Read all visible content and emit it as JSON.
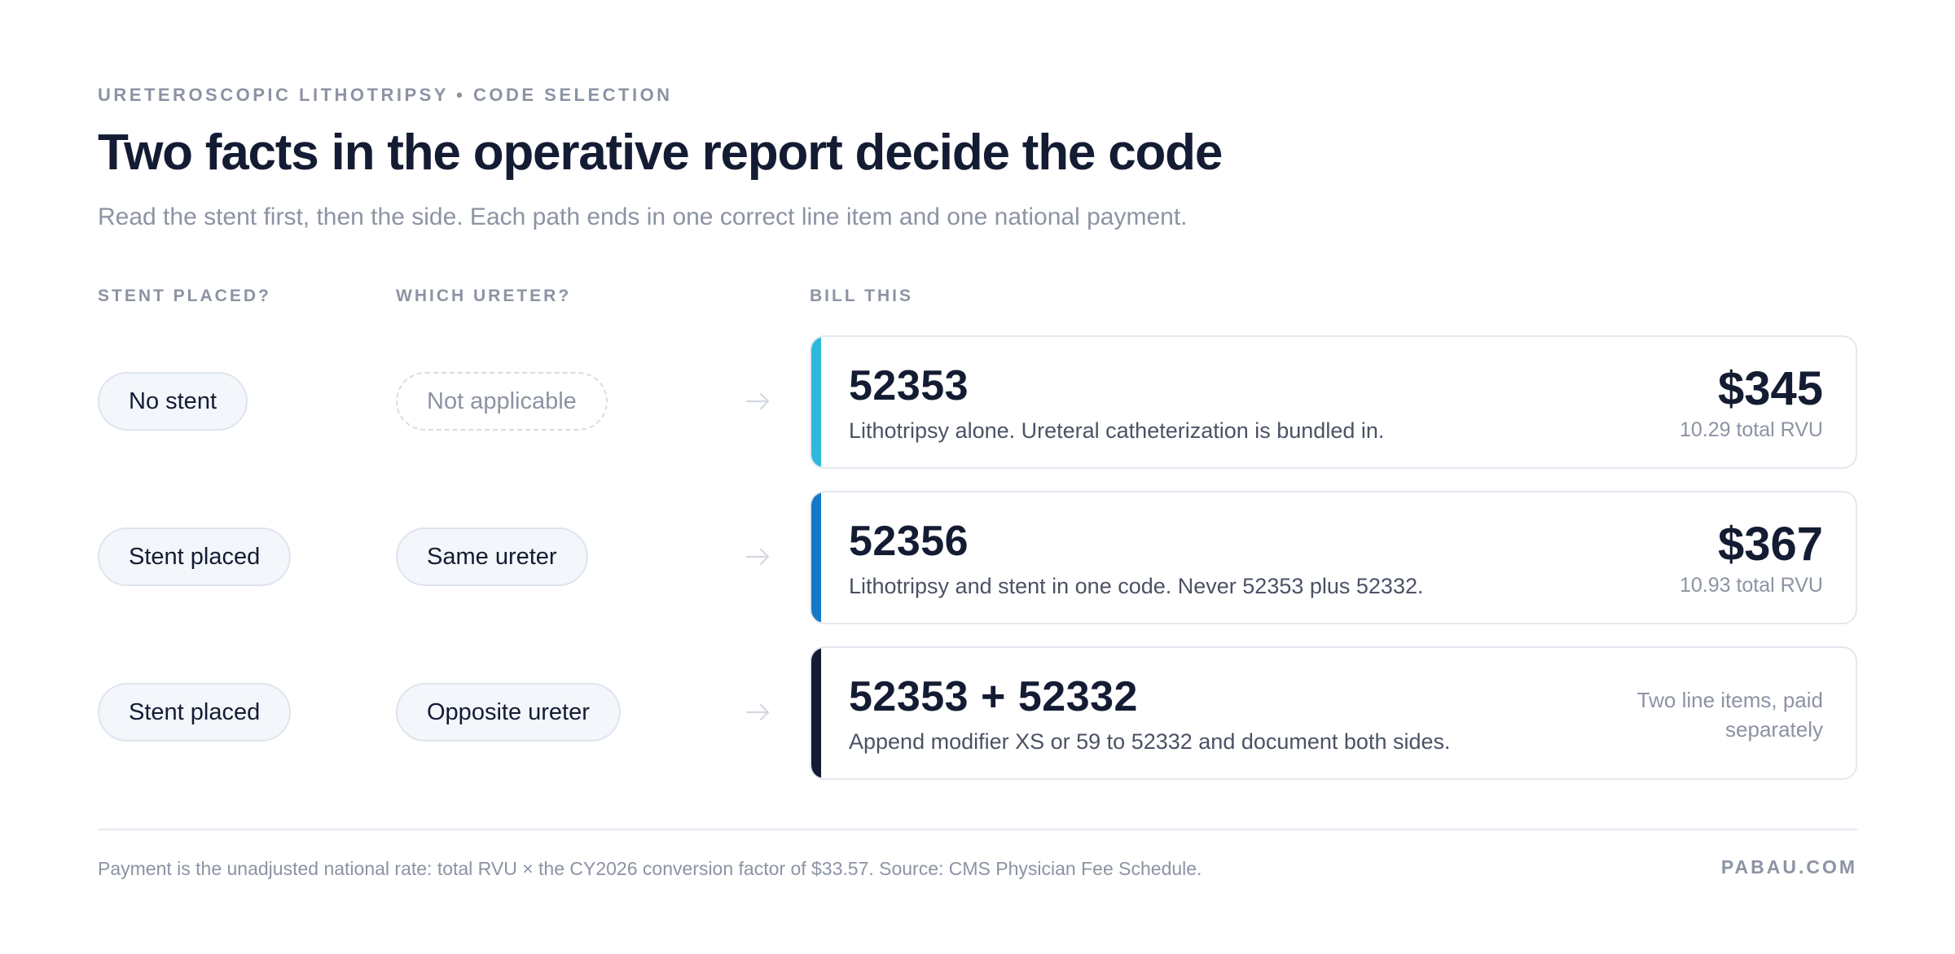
{
  "eyebrow": "URETEROSCOPIC LITHOTRIPSY • CODE SELECTION",
  "headline": "Two facts in the operative report decide the code",
  "subhead": "Read the stent first, then the side. Each path ends in one correct line item and one national payment.",
  "columns": {
    "stent": "STENT PLACED?",
    "ureter": "WHICH URETER?",
    "bill": "BILL THIS"
  },
  "rows": [
    {
      "stent": "No stent",
      "ureter": "Not applicable",
      "code": "52353",
      "description": "Lithotripsy alone. Ureteral catheterization is bundled in.",
      "price": "$345",
      "rvu": "10.29 total RVU",
      "accent_color": "#2db9dd"
    },
    {
      "stent": "Stent placed",
      "ureter": "Same ureter",
      "code": "52356",
      "description": "Lithotripsy and stent in one code. Never 52353 plus 52332.",
      "price": "$367",
      "rvu": "10.93 total RVU",
      "accent_color": "#1478c8"
    },
    {
      "stent": "Stent placed",
      "ureter": "Opposite ureter",
      "code": "52353 + 52332",
      "description": "Append modifier XS or 59 to 52332 and document both sides.",
      "note": "Two line items, paid separately",
      "accent_color": "#141c33"
    }
  ],
  "icons": {
    "arrow": "arrow-right-icon"
  },
  "footnote": "Payment is the unadjusted national rate: total RVU × the CY2026 conversion factor of $33.57. Source: CMS Physician Fee Schedule.",
  "brand": "PABAU.COM",
  "colors": {
    "heading": "#141c33",
    "muted": "#8c93a3",
    "body": "#4a5264",
    "pill_bg": "#f3f6fa",
    "card_border": "#e3e8ef"
  }
}
